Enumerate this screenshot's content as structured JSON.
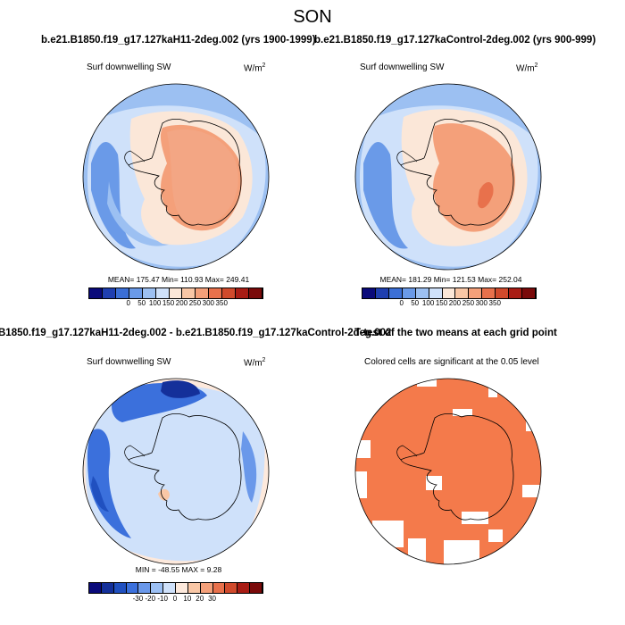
{
  "season": "SON",
  "panels": {
    "p1": {
      "header": "b.e21.B1850.f19_g17.127kaH11-2deg.002 (yrs 1900-1999)",
      "left_label": "Surf downwelling SW",
      "units_base": "W/m",
      "units_exp": "2",
      "stats": "MEAN= 175.47  Min= 110.93  Max= 249.41",
      "ticks": [
        "0",
        "50",
        "100",
        "150",
        "200",
        "250",
        "300",
        "350"
      ]
    },
    "p2": {
      "header": "b.e21.B1850.f19_g17.127kaControl-2deg.002 (yrs 900-999)",
      "left_label": "Surf downwelling SW",
      "units_base": "W/m",
      "units_exp": "2",
      "stats": "MEAN= 181.29  Min= 121.53  Max= 252.04",
      "ticks": [
        "0",
        "50",
        "100",
        "150",
        "200",
        "250",
        "300",
        "350"
      ]
    },
    "p3": {
      "header": "B1850.f19_g17.127kaH11-2deg.002 - b.e21.B1850.f19_g17.127kaControl-2deg.002",
      "left_label": "Surf downwelling SW",
      "units_base": "W/m",
      "units_exp": "2",
      "stats": "MIN = -48.55 MAX =   9.28",
      "ticks": [
        "-30",
        "-20",
        "-10",
        "0",
        "10",
        "20",
        "30"
      ]
    },
    "p4": {
      "header": "T-test of the two means at each grid point",
      "left_label": "Colored cells are significant at the 0.05 level"
    }
  },
  "colors": {
    "abs_scale": [
      "#0a0a7a",
      "#1f3fb0",
      "#3b6fd6",
      "#6a9ae8",
      "#9cc0f2",
      "#cfe1fa",
      "#fbe7d8",
      "#f9c7a6",
      "#f4a07a",
      "#e8714c",
      "#d04a2c",
      "#a81c14",
      "#7a0a0a"
    ],
    "diff_scale": [
      "#0a0a7a",
      "#14309a",
      "#2050c0",
      "#3b70dc",
      "#6a98ea",
      "#9cc0f4",
      "#cfe1fa",
      "#fde9dc",
      "#f9c7a6",
      "#f4a07a",
      "#e8714c",
      "#d04a2c",
      "#a81c14",
      "#7a0a0a"
    ],
    "ocean_blue": "#a8c8f0",
    "land_salmon": "#f3a684",
    "signif_orange": "#f47a4b"
  }
}
